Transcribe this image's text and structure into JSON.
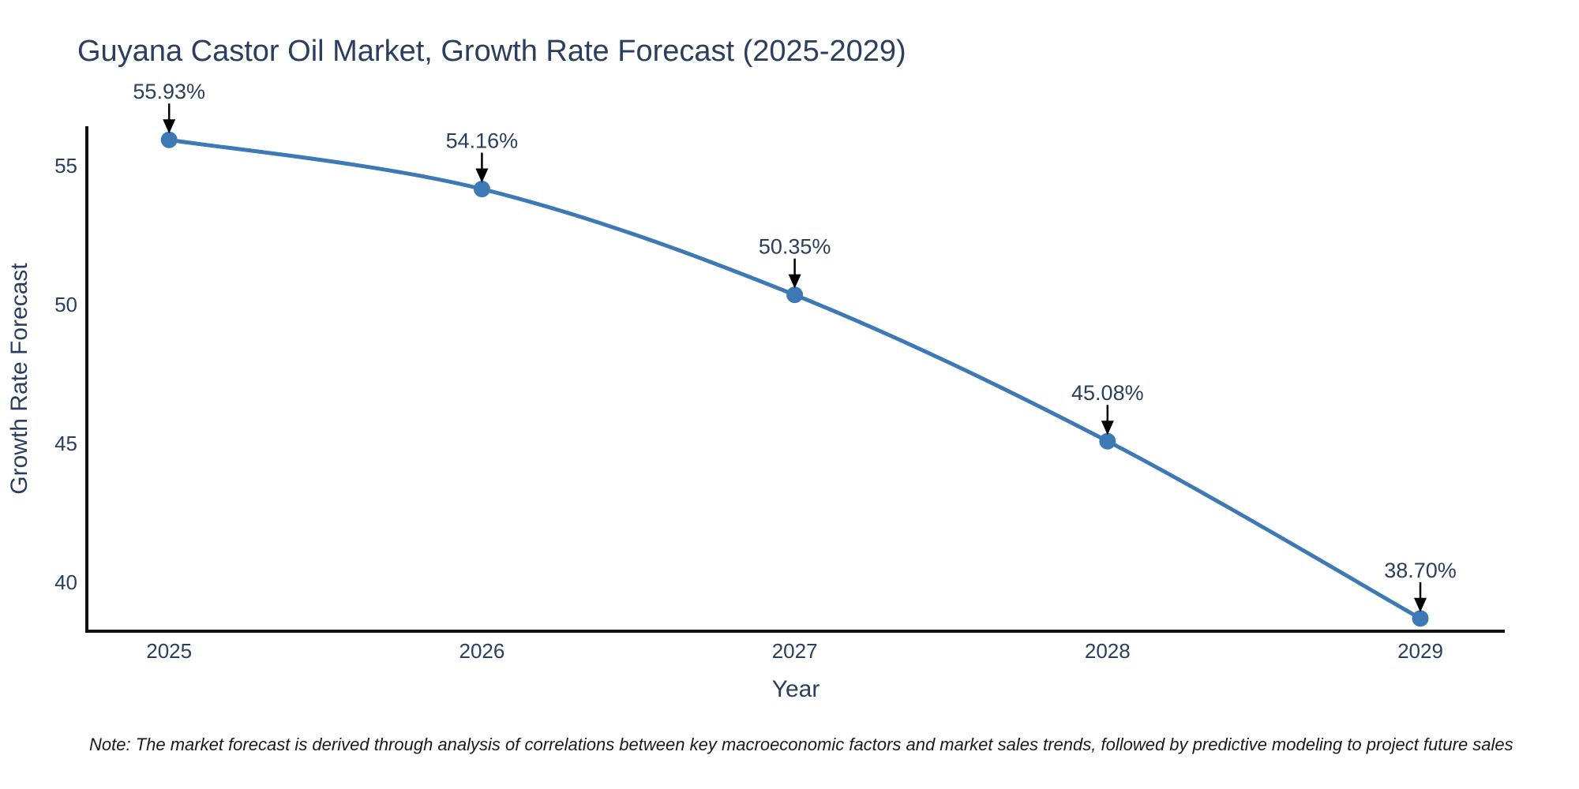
{
  "chart_data": {
    "type": "line",
    "title": "Guyana Castor Oil Market, Growth Rate Forecast (2025-2029)",
    "xlabel": "Year",
    "ylabel": "Growth Rate Forecast",
    "note": "Note: The market forecast is derived through analysis of correlations between key macroeconomic factors and market sales trends, followed by predictive modeling to project future sales",
    "x": [
      2025,
      2026,
      2027,
      2028,
      2029
    ],
    "values": [
      55.93,
      54.16,
      50.35,
      45.08,
      38.7
    ],
    "point_labels": [
      "55.93%",
      "54.16%",
      "50.35%",
      "45.08%",
      "38.70%"
    ],
    "xticks": [
      2025,
      2026,
      2027,
      2028,
      2029
    ],
    "xtick_labels": [
      "2025",
      "2026",
      "2027",
      "2028",
      "2029"
    ],
    "yticks": [
      40,
      45,
      50,
      55
    ],
    "ytick_labels": [
      "40",
      "45",
      "50",
      "55"
    ],
    "xlim": [
      2024.737,
      2029.27
    ],
    "ylim": [
      38.24,
      56.42
    ],
    "grid": false,
    "legend": "none",
    "line_shape": "spline",
    "colors": {
      "line": "#3c79b5",
      "marker": "#3c79b5",
      "axis": "#111111",
      "annotation": "#000000",
      "title_text": "#2a3f5f",
      "tick_text": "#2a3f5f",
      "note_text": "#1a1a1a"
    }
  }
}
